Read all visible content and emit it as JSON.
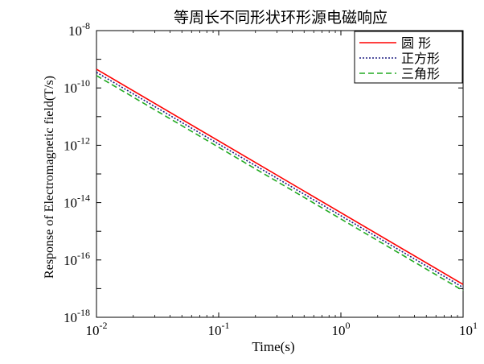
{
  "chart_data": {
    "type": "line",
    "title": "等周长不同形状环形源电磁响应",
    "xlabel": "Time(s)",
    "ylabel": "Response of Electromagnetic field(T/s)",
    "x_scale": "log",
    "y_scale": "log",
    "xlim": [
      0.01,
      10
    ],
    "ylim": [
      1e-18,
      1e-08
    ],
    "x_ticks": [
      {
        "base": "10",
        "exp": "-2"
      },
      {
        "base": "10",
        "exp": "-1"
      },
      {
        "base": "10",
        "exp": "0"
      },
      {
        "base": "10",
        "exp": "1"
      }
    ],
    "y_ticks": [
      {
        "base": "10",
        "exp": "-18"
      },
      {
        "base": "10",
        "exp": "-16"
      },
      {
        "base": "10",
        "exp": "-14"
      },
      {
        "base": "10",
        "exp": "-12"
      },
      {
        "base": "10",
        "exp": "-10"
      },
      {
        "base": "10",
        "exp": "-8"
      }
    ],
    "grid": false,
    "legend_position": "top-right",
    "series": [
      {
        "name": "圆 形",
        "color": "#ff0000",
        "dash": "solid",
        "x": [
          0.01,
          10
        ],
        "y": [
          4.5e-10,
          1.4e-17
        ]
      },
      {
        "name": "正方形",
        "color": "#1a1a80",
        "dash": "dotted",
        "x": [
          0.01,
          10
        ],
        "y": [
          3.5e-10,
          1.1e-17
        ]
      },
      {
        "name": "三角形",
        "color": "#22aa22",
        "dash": "dashed",
        "x": [
          0.01,
          10
        ],
        "y": [
          2.7e-10,
          8.5e-18
        ]
      }
    ]
  }
}
